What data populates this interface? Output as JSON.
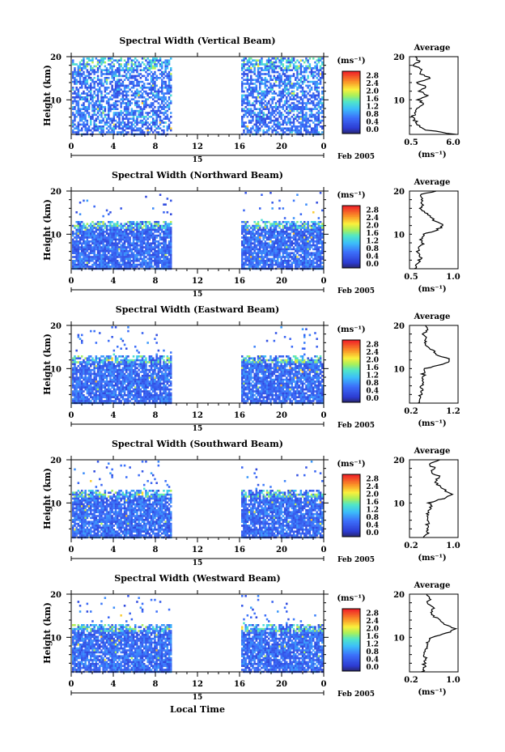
{
  "figure": {
    "xlabel": "Local Time",
    "date_label": "Feb 2005",
    "day_label": "15",
    "unit_label": "(ms⁻¹)",
    "avg_title": "Average",
    "avg_xlabel": "(ms⁻¹)",
    "ylabel": "Height (km)"
  },
  "chart_data": [
    {
      "type": "heatmap",
      "title": "Spectral Width (Vertical Beam)",
      "xlabel": "Local Time",
      "ylabel": "Height (km)",
      "xlim": [
        0,
        24
      ],
      "ylim": [
        2,
        20
      ],
      "xticks": [
        "0",
        "4",
        "8",
        "12",
        "16",
        "20",
        "0"
      ],
      "yticks": [
        "20",
        "10"
      ],
      "data_gap_hours": [
        9.5,
        16
      ],
      "colorbar": {
        "label": "(ms⁻¹)",
        "ticks": [
          "0.0",
          "0.4",
          "0.8",
          "1.2",
          "1.6",
          "2.0",
          "2.4",
          "2.8"
        ]
      },
      "average_profile": {
        "title": "Average",
        "xlabel": "(ms⁻¹)",
        "xticks": [
          "0.5",
          "6.0"
        ],
        "xlim": [
          0.5,
          6.0
        ],
        "heights": [
          2,
          3,
          4,
          5,
          6,
          7,
          8,
          9,
          10,
          11,
          12,
          13,
          14,
          15,
          16,
          17,
          18,
          19,
          20
        ],
        "values": [
          5.6,
          2.5,
          1.5,
          1.2,
          0.9,
          1.0,
          1.2,
          2.2,
          1.5,
          2.6,
          1.6,
          2.4,
          1.4,
          3.0,
          1.6,
          2.0,
          1.0,
          1.6,
          1.2
        ]
      }
    },
    {
      "type": "heatmap",
      "title": "Spectral Width (Northward Beam)",
      "xlabel": "Local Time",
      "ylabel": "Height (km)",
      "xlim": [
        0,
        24
      ],
      "ylim": [
        2,
        20
      ],
      "xticks": [
        "0",
        "4",
        "8",
        "12",
        "16",
        "20",
        "0"
      ],
      "yticks": [
        "20",
        "10"
      ],
      "data_gap_hours": [
        9.5,
        16
      ],
      "colorbar": {
        "label": "(ms⁻¹)",
        "ticks": [
          "0.0",
          "0.4",
          "0.8",
          "1.2",
          "1.6",
          "2.0",
          "2.4",
          "2.8"
        ]
      },
      "average_profile": {
        "title": "Average",
        "xlabel": "(ms⁻¹)",
        "xticks": [
          "0.5",
          "1.0"
        ],
        "xlim": [
          0.5,
          1.0
        ],
        "heights": [
          2,
          3,
          4,
          5,
          6,
          7,
          8,
          9,
          10,
          11,
          12,
          13,
          14,
          15,
          16,
          17,
          18,
          19,
          20
        ],
        "values": [
          0.55,
          0.58,
          0.6,
          0.62,
          0.58,
          0.6,
          0.64,
          0.62,
          0.66,
          0.78,
          0.86,
          0.76,
          0.72,
          0.66,
          0.62,
          0.64,
          0.62,
          0.6,
          0.76
        ]
      }
    },
    {
      "type": "heatmap",
      "title": "Spectral Width (Eastward Beam)",
      "xlabel": "Local Time",
      "ylabel": "Height (km)",
      "xlim": [
        0,
        24
      ],
      "ylim": [
        2,
        20
      ],
      "xticks": [
        "0",
        "4",
        "8",
        "12",
        "16",
        "20",
        "0"
      ],
      "yticks": [
        "20",
        "10"
      ],
      "data_gap_hours": [
        9.5,
        16
      ],
      "colorbar": {
        "label": "(ms⁻¹)",
        "ticks": [
          "0.0",
          "0.4",
          "0.8",
          "1.2",
          "1.6",
          "2.0",
          "2.4",
          "2.8"
        ]
      },
      "average_profile": {
        "title": "Average",
        "xlabel": "(ms⁻¹)",
        "xticks": [
          "0.2",
          "1.2"
        ],
        "xlim": [
          0.2,
          1.2
        ],
        "heights": [
          2,
          3,
          4,
          5,
          6,
          7,
          8,
          9,
          10,
          11,
          12,
          13,
          14,
          15,
          16,
          17,
          18,
          19,
          20
        ],
        "values": [
          0.4,
          0.45,
          0.42,
          0.44,
          0.46,
          0.48,
          0.5,
          0.48,
          0.52,
          0.9,
          1.05,
          0.8,
          0.7,
          0.55,
          0.5,
          0.56,
          0.48,
          0.55,
          0.5
        ]
      }
    },
    {
      "type": "heatmap",
      "title": "Spectral Width (Southward Beam)",
      "xlabel": "Local Time",
      "ylabel": "Height (km)",
      "xlim": [
        0,
        24
      ],
      "ylim": [
        2,
        20
      ],
      "xticks": [
        "0",
        "4",
        "8",
        "12",
        "16",
        "20",
        "0"
      ],
      "yticks": [
        "20",
        "10"
      ],
      "data_gap_hours": [
        9.5,
        16
      ],
      "colorbar": {
        "label": "(ms⁻¹)",
        "ticks": [
          "0.0",
          "0.4",
          "0.8",
          "1.2",
          "1.6",
          "2.0",
          "2.4",
          "2.8"
        ]
      },
      "average_profile": {
        "title": "Average",
        "xlabel": "(ms⁻¹)",
        "xticks": [
          "0.2",
          "1.0"
        ],
        "xlim": [
          0.2,
          1.0
        ],
        "heights": [
          2,
          3,
          4,
          5,
          6,
          7,
          8,
          9,
          10,
          11,
          12,
          13,
          14,
          15,
          16,
          17,
          18,
          19,
          20
        ],
        "values": [
          0.45,
          0.5,
          0.48,
          0.5,
          0.52,
          0.48,
          0.5,
          0.55,
          0.52,
          0.75,
          0.9,
          0.78,
          0.68,
          0.6,
          0.72,
          0.55,
          0.62,
          0.5,
          0.7
        ]
      }
    },
    {
      "type": "heatmap",
      "title": "Spectral Width (Westward Beam)",
      "xlabel": "Local Time",
      "ylabel": "Height (km)",
      "xlim": [
        0,
        24
      ],
      "ylim": [
        2,
        20
      ],
      "xticks": [
        "0",
        "4",
        "8",
        "12",
        "16",
        "20",
        "0"
      ],
      "yticks": [
        "20",
        "10"
      ],
      "data_gap_hours": [
        9.5,
        16
      ],
      "colorbar": {
        "label": "(ms⁻¹)",
        "ticks": [
          "0.0",
          "0.4",
          "0.8",
          "1.2",
          "1.6",
          "2.0",
          "2.4",
          "2.8"
        ]
      },
      "average_profile": {
        "title": "Average",
        "xlabel": "(ms⁻¹)",
        "xticks": [
          "0.2",
          "1.0"
        ],
        "xlim": [
          0.2,
          1.0
        ],
        "heights": [
          2,
          3,
          4,
          5,
          6,
          7,
          8,
          9,
          10,
          11,
          12,
          13,
          14,
          15,
          16,
          17,
          18,
          19,
          20
        ],
        "values": [
          0.42,
          0.45,
          0.44,
          0.46,
          0.45,
          0.48,
          0.5,
          0.5,
          0.55,
          0.82,
          0.95,
          0.8,
          0.7,
          0.6,
          0.55,
          0.62,
          0.5,
          0.55,
          0.5
        ]
      }
    }
  ]
}
